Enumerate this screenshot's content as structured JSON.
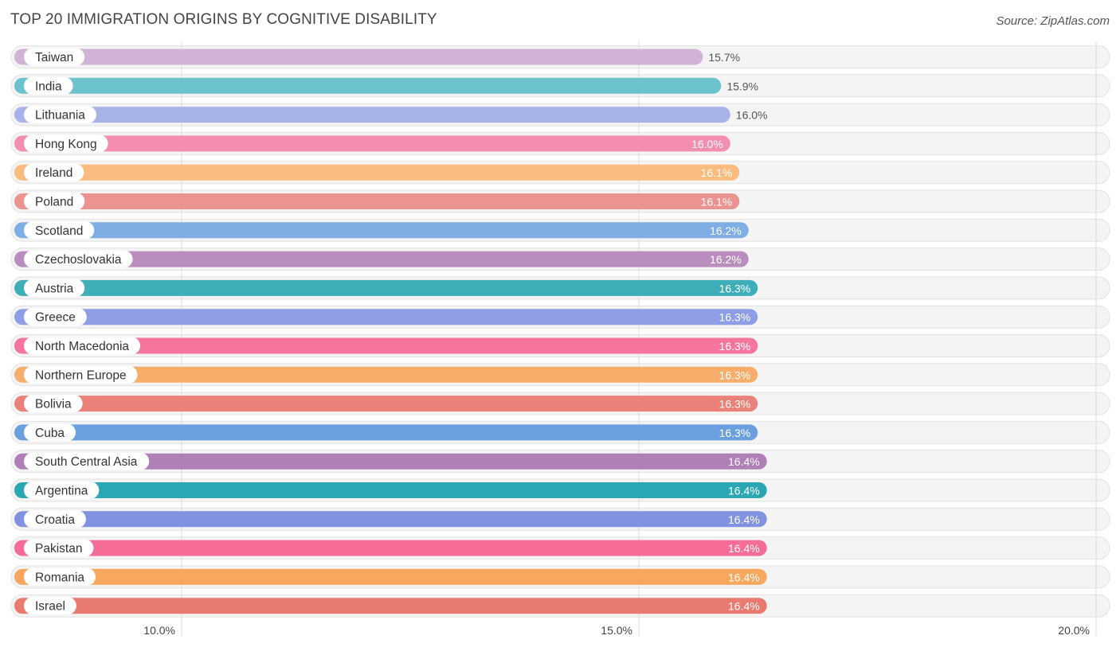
{
  "title": "TOP 20 IMMIGRATION ORIGINS BY COGNITIVE DISABILITY",
  "source": "Source: ZipAtlas.com",
  "chart_data": {
    "type": "bar",
    "orientation": "horizontal",
    "title": "TOP 20 IMMIGRATION ORIGINS BY COGNITIVE DISABILITY",
    "xlabel": "",
    "ylabel": "",
    "xlim": [
      8.2,
      20.2
    ],
    "grid": true,
    "ticks": [
      10.0,
      15.0,
      20.0
    ],
    "tick_labels": [
      "10.0%",
      "15.0%",
      "20.0%"
    ],
    "bars": [
      {
        "label": "Taiwan",
        "value": 15.7,
        "value_label": "15.7%",
        "color": "#d0b3d6"
      },
      {
        "label": "India",
        "value": 15.9,
        "value_label": "15.9%",
        "color": "#6dc3cd"
      },
      {
        "label": "Lithuania",
        "value": 16.0,
        "value_label": "16.0%",
        "color": "#a8b3e8"
      },
      {
        "label": "Hong Kong",
        "value": 16.0,
        "value_label": "16.0%",
        "color": "#f48eb1"
      },
      {
        "label": "Ireland",
        "value": 16.1,
        "value_label": "16.1%",
        "color": "#f9bb7e"
      },
      {
        "label": "Poland",
        "value": 16.1,
        "value_label": "16.1%",
        "color": "#ea9390"
      },
      {
        "label": "Scotland",
        "value": 16.2,
        "value_label": "16.2%",
        "color": "#7eaee3"
      },
      {
        "label": "Czechoslovakia",
        "value": 16.2,
        "value_label": "16.2%",
        "color": "#b98ebf"
      },
      {
        "label": "Austria",
        "value": 16.3,
        "value_label": "16.3%",
        "color": "#3eaeb9"
      },
      {
        "label": "Greece",
        "value": 16.3,
        "value_label": "16.3%",
        "color": "#8f9de6"
      },
      {
        "label": "North Macedonia",
        "value": 16.3,
        "value_label": "16.3%",
        "color": "#f5759c"
      },
      {
        "label": "Northern Europe",
        "value": 16.3,
        "value_label": "16.3%",
        "color": "#f8ad6a"
      },
      {
        "label": "Bolivia",
        "value": 16.3,
        "value_label": "16.3%",
        "color": "#ea827a"
      },
      {
        "label": "Cuba",
        "value": 16.3,
        "value_label": "16.3%",
        "color": "#6a9fe0"
      },
      {
        "label": "South Central Asia",
        "value": 16.4,
        "value_label": "16.4%",
        "color": "#ae80b6"
      },
      {
        "label": "Argentina",
        "value": 16.4,
        "value_label": "16.4%",
        "color": "#2ba6b3"
      },
      {
        "label": "Croatia",
        "value": 16.4,
        "value_label": "16.4%",
        "color": "#8192e0"
      },
      {
        "label": "Pakistan",
        "value": 16.4,
        "value_label": "16.4%",
        "color": "#f56d97"
      },
      {
        "label": "Romania",
        "value": 16.4,
        "value_label": "16.4%",
        "color": "#f8a85e"
      },
      {
        "label": "Israel",
        "value": 16.4,
        "value_label": "16.4%",
        "color": "#e97a6f"
      }
    ]
  }
}
